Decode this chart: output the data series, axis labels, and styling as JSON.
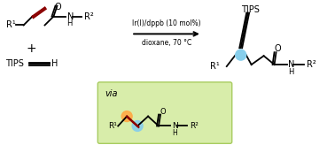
{
  "bg_color": "#ffffff",
  "bond_color": "#000000",
  "dark_red_color": "#8B0000",
  "cyan_color": "#87CEEB",
  "orange_color": "#FFAA44",
  "green_bg": "#d8edaa",
  "green_edge": "#a8cc60",
  "reaction_text1": "Ir(I)/dppb (10 mol%)",
  "reaction_text2": "dioxane, 70 °C",
  "via_text": "via",
  "tips_label": "TIPS",
  "r1_label": "R¹",
  "r2_label": "R²",
  "plus_label": "+",
  "h_label": "H",
  "n_label": "N",
  "o_label": "O",
  "figsize": [
    3.78,
    1.64
  ],
  "dpi": 100
}
